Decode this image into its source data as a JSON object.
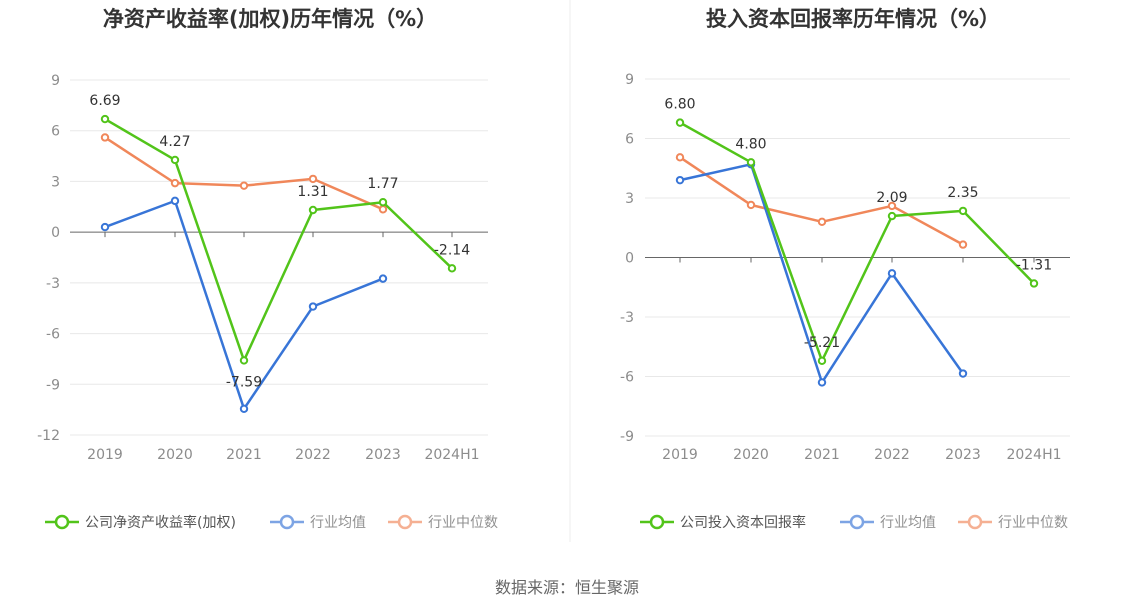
{
  "source": "数据来源：恒生聚源",
  "colors": {
    "company": "#52c41a",
    "industry_avg": "#3875d7",
    "industry_median": "#f0875a",
    "grid": "#e8e8e8",
    "axis": "#666666",
    "divider": "#eeeeee"
  },
  "chart_data": [
    {
      "type": "line",
      "title": "净资产收益率(加权)历年情况（%）",
      "categories": [
        "2019",
        "2020",
        "2021",
        "2022",
        "2023",
        "2024H1"
      ],
      "y_ticks": [
        "9",
        "6",
        "3",
        "0",
        "-3",
        "-6",
        "-9",
        "-12"
      ],
      "ylim": [
        -12,
        9
      ],
      "grid": true,
      "legend_position": "bottom",
      "series": [
        {
          "name": "公司净资产收益率(加权)",
          "color_key": "company",
          "values": [
            6.69,
            4.27,
            -7.59,
            1.31,
            1.77,
            -2.14
          ],
          "labels": [
            "6.69",
            "4.27",
            "-7.59",
            "1.31",
            "1.77",
            "-2.14"
          ]
        },
        {
          "name": "行业均值",
          "color_key": "industry_avg",
          "values": [
            0.3,
            1.85,
            -10.45,
            -4.4,
            -2.75,
            null
          ]
        },
        {
          "name": "行业中位数",
          "color_key": "industry_median",
          "values": [
            5.6,
            2.9,
            2.75,
            3.15,
            1.35,
            null
          ]
        }
      ]
    },
    {
      "type": "line",
      "title": "投入资本回报率历年情况（%）",
      "categories": [
        "2019",
        "2020",
        "2021",
        "2022",
        "2023",
        "2024H1"
      ],
      "y_ticks": [
        "9",
        "6",
        "3",
        "0",
        "-3",
        "-6",
        "-9"
      ],
      "ylim": [
        -9,
        9
      ],
      "grid": true,
      "legend_position": "bottom",
      "series": [
        {
          "name": "公司投入资本回报率",
          "color_key": "company",
          "values": [
            6.8,
            4.8,
            -5.21,
            2.09,
            2.35,
            -1.31
          ],
          "labels": [
            "6.80",
            "4.80",
            "-5.21",
            "2.09",
            "2.35",
            "-1.31"
          ]
        },
        {
          "name": "行业均值",
          "color_key": "industry_avg",
          "values": [
            3.9,
            4.7,
            -6.3,
            -0.8,
            -5.85,
            null
          ]
        },
        {
          "name": "行业中位数",
          "color_key": "industry_median",
          "values": [
            5.05,
            2.65,
            1.8,
            2.6,
            0.65,
            null
          ]
        }
      ]
    }
  ]
}
